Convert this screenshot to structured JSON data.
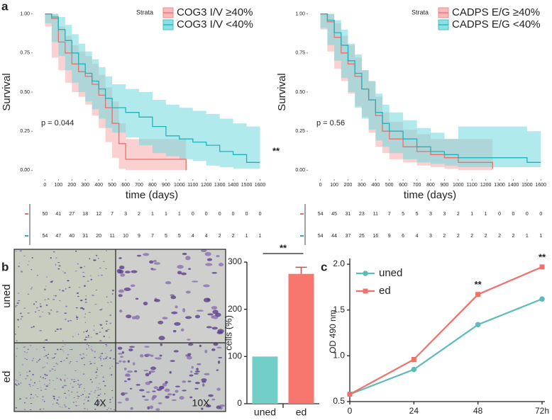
{
  "chart_data": [
    {
      "type": "survival",
      "panel_label": "a",
      "ylabel": "Survival",
      "xlabel": "time (days)",
      "legend_title": "Strata",
      "p_value_label": "p = 0.044",
      "significance": "**",
      "xlim": [
        -60,
        1650
      ],
      "ylim": [
        -0.03,
        1.03
      ],
      "xticks": [
        0,
        100,
        200,
        300,
        400,
        500,
        600,
        700,
        800,
        900,
        1000,
        1100,
        1200,
        1300,
        1400,
        1500,
        1600
      ],
      "yticks": [
        {
          "value": 0,
          "label": "0.00"
        },
        {
          "value": 0.25,
          "label": "0.25"
        },
        {
          "value": 0.5,
          "label": "0.50"
        },
        {
          "value": 0.75,
          "label": "0.75"
        },
        {
          "value": 1,
          "label": "1.00"
        }
      ],
      "series": [
        {
          "name": "COG3 I/V ≥40%",
          "color": "#e8706d",
          "band_color": "#f7a9a9",
          "x": [
            0,
            50,
            100,
            150,
            200,
            250,
            300,
            350,
            400,
            450,
            500,
            550,
            600,
            1050
          ],
          "values": [
            1,
            0.97,
            0.82,
            0.75,
            0.68,
            0.63,
            0.6,
            0.55,
            0.48,
            0.4,
            0.3,
            0.17,
            0.07,
            0
          ],
          "lower": [
            1,
            0.92,
            0.72,
            0.64,
            0.56,
            0.5,
            0.47,
            0.42,
            0.35,
            0.27,
            0.18,
            0.08,
            0.01,
            0
          ],
          "upper": [
            1,
            1,
            0.92,
            0.86,
            0.8,
            0.76,
            0.73,
            0.68,
            0.61,
            0.53,
            0.44,
            0.3,
            0.2,
            0.2
          ]
        },
        {
          "name": "COG3 I/V <40%",
          "color": "#1fb3bb",
          "band_color": "#6fd9de",
          "x": [
            0,
            50,
            100,
            150,
            200,
            250,
            300,
            350,
            400,
            450,
            500,
            600,
            700,
            800,
            900,
            1000,
            1100,
            1200,
            1300,
            1400,
            1500,
            1600
          ],
          "values": [
            1,
            0.98,
            0.9,
            0.83,
            0.75,
            0.68,
            0.62,
            0.57,
            0.52,
            0.46,
            0.4,
            0.37,
            0.34,
            0.28,
            0.22,
            0.2,
            0.18,
            0.16,
            0.12,
            0.1,
            0.05,
            0.05
          ],
          "lower": [
            1,
            0.94,
            0.82,
            0.73,
            0.64,
            0.56,
            0.5,
            0.44,
            0.39,
            0.33,
            0.27,
            0.24,
            0.21,
            0.16,
            0.11,
            0.09,
            0.07,
            0.06,
            0.03,
            0.02,
            0.01,
            0.01
          ],
          "upper": [
            1,
            1,
            0.98,
            0.93,
            0.87,
            0.81,
            0.76,
            0.71,
            0.66,
            0.6,
            0.55,
            0.52,
            0.5,
            0.45,
            0.42,
            0.4,
            0.38,
            0.36,
            0.33,
            0.3,
            0.28,
            0.28
          ]
        }
      ],
      "risk_table": [
        [
          50,
          41,
          27,
          18,
          12,
          7,
          3,
          2,
          1,
          1,
          1,
          0,
          0,
          0,
          0,
          0,
          0
        ],
        [
          54,
          47,
          40,
          31,
          20,
          11,
          10,
          9,
          7,
          5,
          5,
          4,
          4,
          2,
          2,
          1,
          1
        ]
      ]
    },
    {
      "type": "survival",
      "ylabel": "Survival",
      "xlabel": "time (days)",
      "legend_title": "Strata",
      "p_value_label": "p = 0.56",
      "xlim": [
        -60,
        1650
      ],
      "ylim": [
        -0.03,
        1.03
      ],
      "xticks": [
        0,
        100,
        200,
        300,
        400,
        500,
        600,
        700,
        800,
        900,
        1000,
        1100,
        1200,
        1300,
        1400,
        1500,
        1600
      ],
      "yticks": [
        {
          "value": 0,
          "label": "0.00"
        },
        {
          "value": 0.25,
          "label": "0.25"
        },
        {
          "value": 0.5,
          "label": "0.50"
        },
        {
          "value": 0.75,
          "label": "0.75"
        },
        {
          "value": 1,
          "label": "1.00"
        }
      ],
      "series": [
        {
          "name": "CADPS E/G ≥40%",
          "color": "#e8706d",
          "band_color": "#f7a9a9",
          "x": [
            0,
            50,
            100,
            150,
            200,
            250,
            300,
            350,
            400,
            450,
            500,
            600,
            700,
            800,
            900,
            1000,
            1250
          ],
          "values": [
            1,
            0.95,
            0.85,
            0.75,
            0.68,
            0.6,
            0.52,
            0.45,
            0.35,
            0.25,
            0.2,
            0.15,
            0.12,
            0.1,
            0.08,
            0.05,
            0.01
          ],
          "lower": [
            1,
            0.9,
            0.76,
            0.65,
            0.57,
            0.49,
            0.41,
            0.34,
            0.24,
            0.15,
            0.11,
            0.07,
            0.05,
            0.03,
            0.02,
            0.01,
            0
          ],
          "upper": [
            1,
            1,
            0.94,
            0.86,
            0.8,
            0.72,
            0.64,
            0.57,
            0.47,
            0.37,
            0.31,
            0.26,
            0.23,
            0.2,
            0.2,
            0.2,
            0.2
          ]
        },
        {
          "name": "CADPS E/G <40%",
          "color": "#1fb3bb",
          "band_color": "#6fd9de",
          "x": [
            0,
            50,
            100,
            150,
            200,
            250,
            300,
            350,
            400,
            450,
            500,
            600,
            700,
            800,
            900,
            1000,
            1500,
            1600
          ],
          "values": [
            1,
            0.96,
            0.88,
            0.8,
            0.7,
            0.62,
            0.52,
            0.45,
            0.37,
            0.3,
            0.25,
            0.2,
            0.15,
            0.12,
            0.1,
            0.08,
            0.05,
            0.05
          ],
          "lower": [
            1,
            0.91,
            0.8,
            0.7,
            0.59,
            0.5,
            0.4,
            0.33,
            0.26,
            0.19,
            0.15,
            0.11,
            0.07,
            0.05,
            0.04,
            0.03,
            0.02,
            0.02
          ],
          "upper": [
            1,
            1,
            0.96,
            0.9,
            0.81,
            0.74,
            0.64,
            0.57,
            0.49,
            0.42,
            0.37,
            0.32,
            0.27,
            0.24,
            0.2,
            0.28,
            0.25,
            0.25
          ]
        }
      ],
      "risk_table": [
        [
          54,
          45,
          31,
          23,
          11,
          7,
          5,
          5,
          3,
          3,
          2,
          1,
          1,
          0,
          0,
          0,
          0
        ],
        [
          54,
          44,
          37,
          25,
          16,
          9,
          6,
          4,
          3,
          2,
          2,
          2,
          2,
          2,
          2,
          1,
          1
        ]
      ]
    },
    {
      "type": "bar",
      "panel_label": "b",
      "ylabel": "cells (%)",
      "image_rows": [
        "uned",
        "ed"
      ],
      "magnifications": [
        "4X",
        "10X"
      ],
      "categories": [
        "uned",
        "ed"
      ],
      "values": [
        100,
        275
      ],
      "errors": [
        null,
        14
      ],
      "colors": [
        "#72cfc8",
        "#f7766e"
      ],
      "significance": "**",
      "ylim": [
        0,
        300
      ],
      "yticks": [
        0,
        100,
        200,
        300
      ]
    },
    {
      "type": "line",
      "panel_label": "c",
      "ylabel": "OD 490 nm",
      "x": [
        0,
        24,
        48,
        72
      ],
      "xlim": [
        0,
        72
      ],
      "xticks": [
        0,
        24,
        48,
        {
          "value": 72,
          "label": "72h"
        }
      ],
      "ylim": [
        0.5,
        2.0
      ],
      "yticks": [
        {
          "value": 0.5,
          "label": "0.5"
        },
        {
          "value": 1,
          "label": "1.0"
        },
        {
          "value": 1.5,
          "label": "1.5"
        },
        {
          "value": 2,
          "label": "2.0"
        }
      ],
      "series": [
        {
          "name": "uned",
          "color": "#5bbcb8",
          "values": [
            0.58,
            0.85,
            1.34,
            1.62
          ]
        },
        {
          "name": "ed",
          "color": "#f0716c",
          "values": [
            0.58,
            0.96,
            1.67,
            1.97
          ]
        }
      ],
      "significance": [
        null,
        null,
        "**",
        "**"
      ]
    }
  ]
}
